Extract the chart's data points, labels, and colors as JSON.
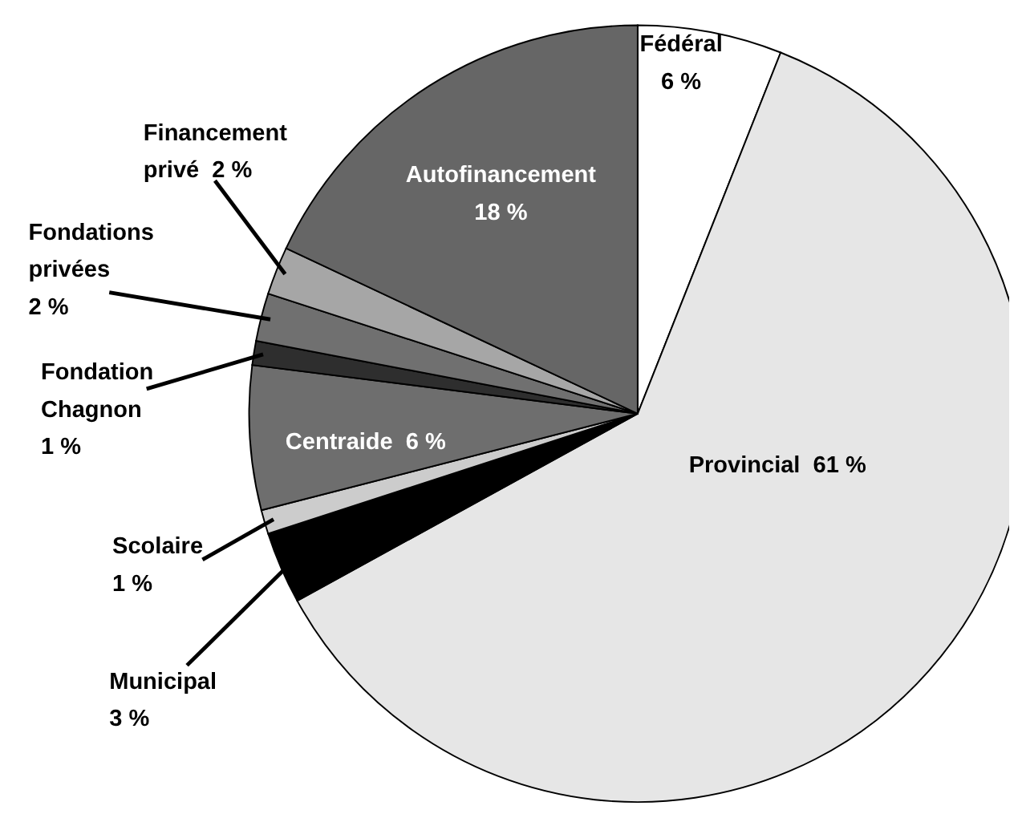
{
  "chart_data": {
    "type": "pie",
    "categories": [
      "Fédéral",
      "Provincial",
      "Municipal",
      "Scolaire",
      "Centraide",
      "Fondation Chagnon",
      "Fondations privées",
      "Financement privé",
      "Autofinancement"
    ],
    "values": [
      6,
      61,
      3,
      1,
      6,
      1,
      2,
      2,
      18
    ],
    "value_labels": [
      "6 %",
      "61 %",
      "3 %",
      "1 %",
      "6 %",
      "1 %",
      "2 %",
      "2 %",
      "18 %"
    ],
    "colors": [
      "#ffffff",
      "#e6e6e6",
      "#000000",
      "#cccccc",
      "#6e6e6e",
      "#2e2e2e",
      "#707070",
      "#a6a6a6",
      "#666666"
    ]
  }
}
